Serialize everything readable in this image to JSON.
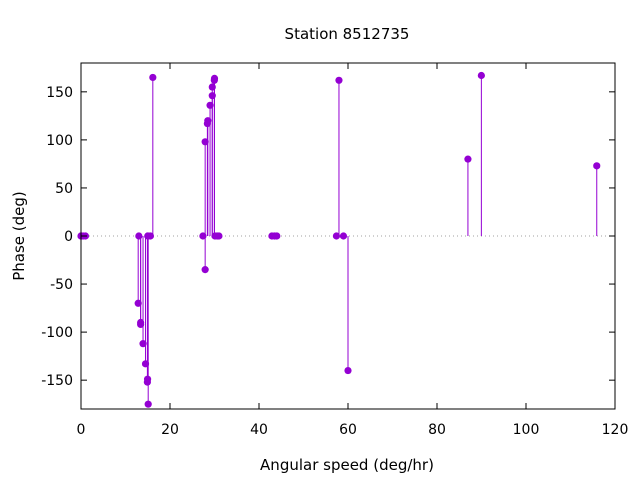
{
  "chart_data": {
    "type": "scatter",
    "style": "impulses-with-points",
    "title": "Station 8512735",
    "xlabel": "Angular speed (deg/hr)",
    "ylabel": "Phase (deg)",
    "xlim": [
      0,
      120
    ],
    "ylim": [
      -180,
      180
    ],
    "xticks": [
      0,
      20,
      40,
      60,
      80,
      100,
      120
    ],
    "yticks": [
      -150,
      -100,
      -50,
      0,
      50,
      100,
      150
    ],
    "zero_line": true,
    "grid": false,
    "legend": "none",
    "color": "#9400d3",
    "points": [
      {
        "x": 0.0,
        "y": 0
      },
      {
        "x": 0.04,
        "y": 0
      },
      {
        "x": 0.08,
        "y": 0
      },
      {
        "x": 0.5,
        "y": 0
      },
      {
        "x": 1.0,
        "y": 0
      },
      {
        "x": 12.85,
        "y": -70
      },
      {
        "x": 13.0,
        "y": 0
      },
      {
        "x": 13.4,
        "y": -92
      },
      {
        "x": 13.4,
        "y": -90
      },
      {
        "x": 13.94,
        "y": -112
      },
      {
        "x": 14.5,
        "y": -133
      },
      {
        "x": 14.92,
        "y": -152
      },
      {
        "x": 14.96,
        "y": -149
      },
      {
        "x": 15.0,
        "y": 0
      },
      {
        "x": 15.04,
        "y": 0
      },
      {
        "x": 15.1,
        "y": -175
      },
      {
        "x": 15.6,
        "y": 0
      },
      {
        "x": 16.14,
        "y": 165
      },
      {
        "x": 27.4,
        "y": 0
      },
      {
        "x": 27.9,
        "y": 98
      },
      {
        "x": 27.9,
        "y": -35
      },
      {
        "x": 28.4,
        "y": 117
      },
      {
        "x": 28.5,
        "y": 120
      },
      {
        "x": 29.0,
        "y": 136
      },
      {
        "x": 29.5,
        "y": 155
      },
      {
        "x": 29.5,
        "y": 146
      },
      {
        "x": 29.96,
        "y": 162
      },
      {
        "x": 30.0,
        "y": 164
      },
      {
        "x": 30.1,
        "y": 0
      },
      {
        "x": 30.6,
        "y": 0
      },
      {
        "x": 31.0,
        "y": 0
      },
      {
        "x": 42.9,
        "y": 0
      },
      {
        "x": 43.5,
        "y": 0
      },
      {
        "x": 44.0,
        "y": 0
      },
      {
        "x": 57.4,
        "y": 0
      },
      {
        "x": 57.97,
        "y": 162
      },
      {
        "x": 58.98,
        "y": 0
      },
      {
        "x": 60.0,
        "y": -140
      },
      {
        "x": 86.95,
        "y": 80
      },
      {
        "x": 89.97,
        "y": 167
      },
      {
        "x": 115.9,
        "y": 73
      }
    ]
  }
}
